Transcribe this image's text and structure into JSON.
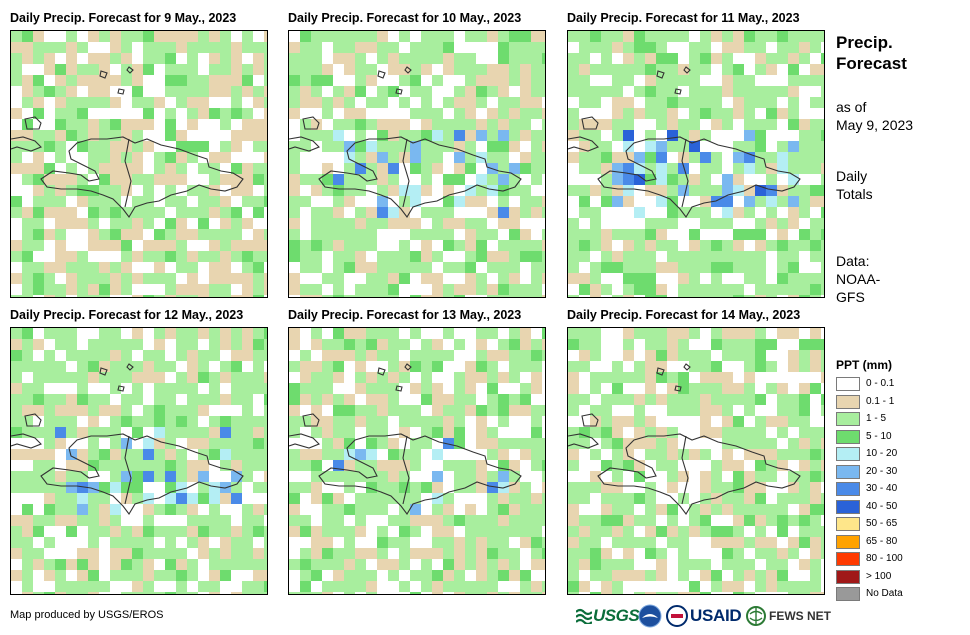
{
  "panels": [
    {
      "title": "Daily Precip. Forecast for 9 May., 2023",
      "wetness": 0.15,
      "seed": 11
    },
    {
      "title": "Daily Precip. Forecast for 10 May., 2023",
      "wetness": 0.55,
      "seed": 23
    },
    {
      "title": "Daily Precip. Forecast for 11 May., 2023",
      "wetness": 0.7,
      "seed": 37
    },
    {
      "title": "Daily Precip. Forecast for 12 May., 2023",
      "wetness": 0.6,
      "seed": 41
    },
    {
      "title": "Daily Precip. Forecast for 13 May., 2023",
      "wetness": 0.5,
      "seed": 53
    },
    {
      "title": "Daily Precip. Forecast for 14 May., 2023",
      "wetness": 0.35,
      "seed": 67
    }
  ],
  "sidebar": {
    "title_line1": "Precip.",
    "title_line2": "Forecast",
    "asof_line1": "as of",
    "asof_line2": "May 9, 2023",
    "totals_line1": "Daily",
    "totals_line2": "Totals",
    "data_line1": "Data:",
    "data_line2": "NOAA-",
    "data_line3": "GFS"
  },
  "legend": {
    "title": "PPT (mm)",
    "items": [
      {
        "label": "0 - 0.1",
        "color": "#ffffff"
      },
      {
        "label": "0.1 - 1",
        "color": "#e8d5b0"
      },
      {
        "label": "1 - 5",
        "color": "#a8ee9e"
      },
      {
        "label": "5 - 10",
        "color": "#6edc6e"
      },
      {
        "label": "10 - 20",
        "color": "#b4eef4"
      },
      {
        "label": "20 - 30",
        "color": "#7ab8f0"
      },
      {
        "label": "30 - 40",
        "color": "#4a8ae8"
      },
      {
        "label": "40 - 50",
        "color": "#2a62d8"
      },
      {
        "label": "50 - 65",
        "color": "#fee68a"
      },
      {
        "label": "65 - 80",
        "color": "#ffa200"
      },
      {
        "label": "80 - 100",
        "color": "#ff3a00"
      },
      {
        "label": "> 100",
        "color": "#a01818"
      },
      {
        "label": "No Data",
        "color": "#999999"
      }
    ]
  },
  "footer": {
    "credit": "Map produced by USGS/EROS",
    "logo_usgs": "USGS",
    "logo_usaid": "USAID",
    "logo_fews": "FEWS NET"
  }
}
